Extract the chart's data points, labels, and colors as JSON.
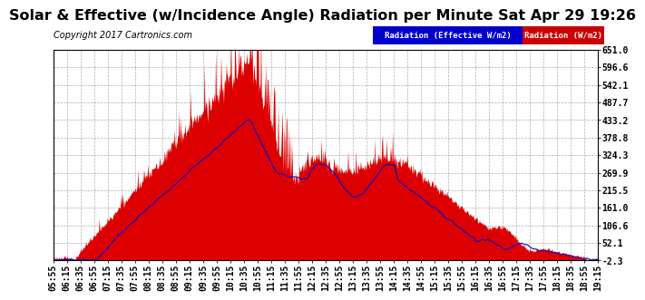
{
  "title": "Solar & Effective (w/Incidence Angle) Radiation per Minute Sat Apr 29 19:26",
  "copyright": "Copyright 2017 Cartronics.com",
  "yticks": [
    651.0,
    596.6,
    542.1,
    487.7,
    433.2,
    378.8,
    324.3,
    269.9,
    215.5,
    161.0,
    106.6,
    52.1,
    -2.3
  ],
  "ymin": -2.3,
  "ymax": 651.0,
  "legend_label_blue": "Radiation (Effective W/m2)",
  "legend_label_red": "Radiation (W/m2)",
  "legend_bg_blue": "#0000cc",
  "legend_bg_red": "#cc0000",
  "area_color": "#dd0000",
  "line_color": "#0000cc",
  "background_color": "#ffffff",
  "grid_color": "#999999",
  "title_fontsize": 11.5,
  "copyright_fontsize": 7,
  "tick_fontsize": 7,
  "xtick_labels": [
    "05:55",
    "06:15",
    "06:35",
    "06:55",
    "07:15",
    "07:35",
    "07:55",
    "08:15",
    "08:35",
    "08:55",
    "09:15",
    "09:35",
    "09:55",
    "10:15",
    "10:35",
    "10:55",
    "11:15",
    "11:35",
    "11:55",
    "12:15",
    "12:35",
    "12:55",
    "13:15",
    "13:35",
    "13:55",
    "14:15",
    "14:35",
    "14:55",
    "15:15",
    "15:35",
    "15:55",
    "16:15",
    "16:35",
    "16:55",
    "17:15",
    "17:35",
    "17:55",
    "18:15",
    "18:35",
    "18:55",
    "19:15"
  ],
  "num_points": 820
}
